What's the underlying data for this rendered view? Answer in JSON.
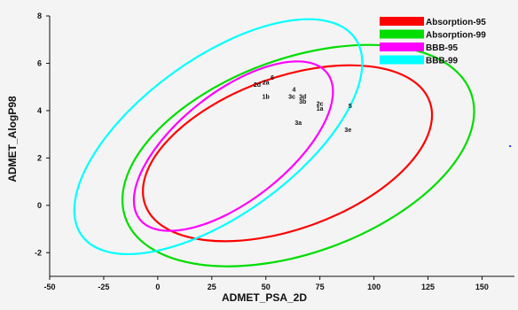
{
  "chart_data": {
    "type": "scatter",
    "title": "",
    "xlabel": "ADMET_PSA_2D",
    "ylabel": "ADMET_AlogP98",
    "xlim": [
      -50,
      165
    ],
    "ylim": [
      -3,
      8
    ],
    "xticks": [
      -50,
      -25,
      0,
      25,
      50,
      75,
      100,
      125,
      150
    ],
    "yticks": [
      -2,
      0,
      2,
      4,
      6,
      8
    ],
    "grid": false,
    "legend_position": "top-right",
    "ellipses": [
      {
        "name": "Absorption-95",
        "color": "#ff0000",
        "cx": 60,
        "cy": 2.2,
        "rx": 70,
        "ry": 3.2,
        "angle_deg": -20
      },
      {
        "name": "Absorption-99",
        "color": "#00dd00",
        "cx": 65,
        "cy": 2.1,
        "rx": 85,
        "ry": 4.1,
        "angle_deg": -20
      },
      {
        "name": "BBB-95",
        "color": "#ff00ff",
        "cx": 35,
        "cy": 2.5,
        "rx": 55,
        "ry": 2.3,
        "angle_deg": -38
      },
      {
        "name": "BBB-99",
        "color": "#00ffff",
        "cx": 28,
        "cy": 2.9,
        "rx": 78,
        "ry": 3.3,
        "angle_deg": -36
      }
    ],
    "points": [
      {
        "label": "6",
        "x": 53,
        "y": 5.3
      },
      {
        "label": "2d",
        "x": 46,
        "y": 5.0
      },
      {
        "label": "2a",
        "x": 50,
        "y": 5.1
      },
      {
        "label": "1b",
        "x": 50,
        "y": 4.5
      },
      {
        "label": "4",
        "x": 63,
        "y": 4.8
      },
      {
        "label": "3c",
        "x": 62,
        "y": 4.5
      },
      {
        "label": "3d",
        "x": 67,
        "y": 4.5
      },
      {
        "label": "3b",
        "x": 67,
        "y": 4.3
      },
      {
        "label": "2c",
        "x": 75,
        "y": 4.2
      },
      {
        "label": "1a",
        "x": 75,
        "y": 4.0
      },
      {
        "label": "5",
        "x": 89,
        "y": 4.1
      },
      {
        "label": "3a",
        "x": 65,
        "y": 3.4
      },
      {
        "label": "3e",
        "x": 88,
        "y": 3.1
      }
    ],
    "outlier_point": {
      "x": 163,
      "y": 2.5,
      "color": "#3030ff"
    }
  }
}
